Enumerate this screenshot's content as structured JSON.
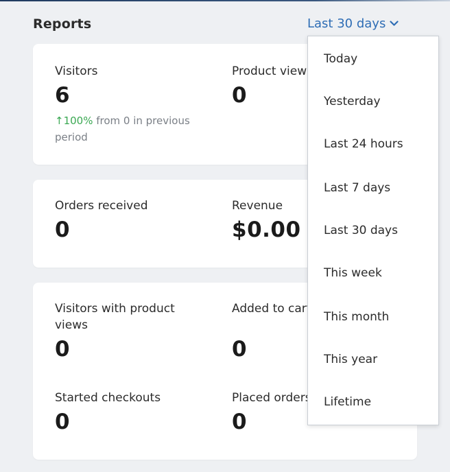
{
  "header": {
    "title": "Reports",
    "range_label": "Last 30 days",
    "range_icon": "chevron-down-icon"
  },
  "colors": {
    "accent": "#2e6db5",
    "positive": "#3aa852",
    "muted": "#7a7f86"
  },
  "cards": {
    "summary": {
      "visitors": {
        "label": "Visitors",
        "value": "6",
        "delta_percent": "↑100%",
        "delta_text": " from 0 in previous period"
      },
      "product_views": {
        "label": "Product views",
        "value": "0"
      }
    },
    "sales": {
      "orders": {
        "label": "Orders received",
        "value": "0"
      },
      "revenue": {
        "label": "Revenue",
        "value": "$0.00"
      }
    },
    "funnel": {
      "visitors_with_product_views": {
        "label": "Visitors with product views",
        "value": "0"
      },
      "added_to_cart": {
        "label": "Added to cart",
        "value": "0"
      },
      "started_checkouts": {
        "label": "Started checkouts",
        "value": "0"
      },
      "placed_orders": {
        "label": "Placed orders",
        "value": "0"
      }
    }
  },
  "dropdown": {
    "options": [
      "Today",
      "Yesterday",
      "Last 24 hours",
      "Last 7 days",
      "Last 30 days",
      "This week",
      "This month",
      "This year",
      "Lifetime"
    ]
  }
}
